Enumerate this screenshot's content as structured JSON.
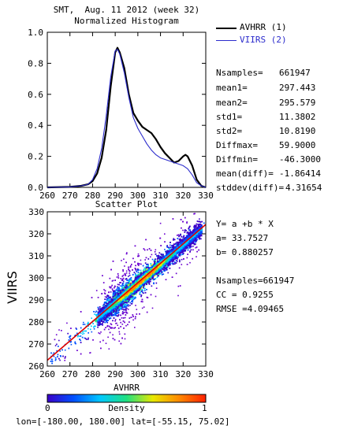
{
  "header": {
    "title": "SMT,  Aug. 11 2012 (week 32)",
    "subtitle": "Normalized Histogram"
  },
  "legend": [
    {
      "label": "AVHRR (1)",
      "color": "#000000"
    },
    {
      "label": "VIIRS (2)",
      "color": "#2b2bcc"
    }
  ],
  "stats": [
    {
      "label": "Nsamples=",
      "value": "661947"
    },
    {
      "label": "mean1=",
      "value": "297.443"
    },
    {
      "label": "mean2=",
      "value": "295.579"
    },
    {
      "label": "std1=",
      "value": "11.3802"
    },
    {
      "label": "std2=",
      "value": "10.8190"
    },
    {
      "label": "Diffmax=",
      "value": "59.9000"
    },
    {
      "label": "Diffmin=",
      "value": "-46.3000"
    },
    {
      "label": "mean(diff)=",
      "value": "-1.86414"
    },
    {
      "label": "stddev(diff)=",
      "value": "4.31654"
    }
  ],
  "regression": [
    "Y= a +b * X",
    "a= 33.7527",
    "b= 0.880257",
    "Nsamples=661947",
    "CC = 0.9255",
    "RMSE =4.09465"
  ],
  "colorbar": {
    "title": "Density",
    "min_label": "0",
    "max_label": "1",
    "colors": [
      "#3a00c8",
      "#0050ff",
      "#00c8ff",
      "#20e080",
      "#e8e800",
      "#ff8800",
      "#ff2000"
    ]
  },
  "footer": "lon=[-180.00, 180.00] lat=[-55.15, 75.02]",
  "chart_data": [
    {
      "type": "line",
      "title": "Normalized Histogram",
      "xlim": [
        260,
        330
      ],
      "ylim": [
        0,
        1.0
      ],
      "x_ticks": [
        "260",
        "270",
        "280",
        "290",
        "300",
        "310",
        "320",
        "330"
      ],
      "y_ticks": [
        "0.0",
        "0.2",
        "0.4",
        "0.6",
        "0.8",
        "1.0"
      ],
      "x": [
        260,
        270,
        275,
        278,
        280,
        282,
        284,
        286,
        288,
        290,
        291,
        292,
        294,
        296,
        298,
        300,
        302,
        304,
        306,
        308,
        310,
        312,
        314,
        316,
        318,
        320,
        321,
        322,
        324,
        326,
        328,
        330
      ],
      "series": [
        {
          "name": "AVHRR (1)",
          "color": "#000000",
          "values": [
            0.0,
            0.003,
            0.01,
            0.02,
            0.04,
            0.09,
            0.19,
            0.37,
            0.65,
            0.87,
            0.9,
            0.87,
            0.77,
            0.6,
            0.48,
            0.43,
            0.39,
            0.37,
            0.35,
            0.31,
            0.26,
            0.22,
            0.19,
            0.16,
            0.17,
            0.2,
            0.21,
            0.2,
            0.14,
            0.05,
            0.01,
            0.0
          ]
        },
        {
          "name": "VIIRS (2)",
          "color": "#2b2bcc",
          "values": [
            0.0,
            0.003,
            0.01,
            0.02,
            0.05,
            0.12,
            0.25,
            0.46,
            0.71,
            0.88,
            0.89,
            0.86,
            0.74,
            0.58,
            0.45,
            0.38,
            0.33,
            0.28,
            0.24,
            0.21,
            0.19,
            0.18,
            0.17,
            0.16,
            0.15,
            0.14,
            0.13,
            0.12,
            0.08,
            0.03,
            0.01,
            0.0
          ]
        }
      ]
    },
    {
      "type": "heatmap",
      "title": "Scatter Plot",
      "xlabel": "AVHRR",
      "ylabel": "VIIRS",
      "xlim": [
        260,
        330
      ],
      "ylim": [
        260,
        330
      ],
      "x_ticks": [
        "260",
        "270",
        "280",
        "290",
        "300",
        "310",
        "320",
        "330"
      ],
      "y_ticks": [
        "260",
        "270",
        "280",
        "290",
        "300",
        "310",
        "320",
        "330"
      ],
      "fit_line": {
        "a": 33.7527,
        "b": 0.880257,
        "color": "#dd0000"
      }
    }
  ]
}
